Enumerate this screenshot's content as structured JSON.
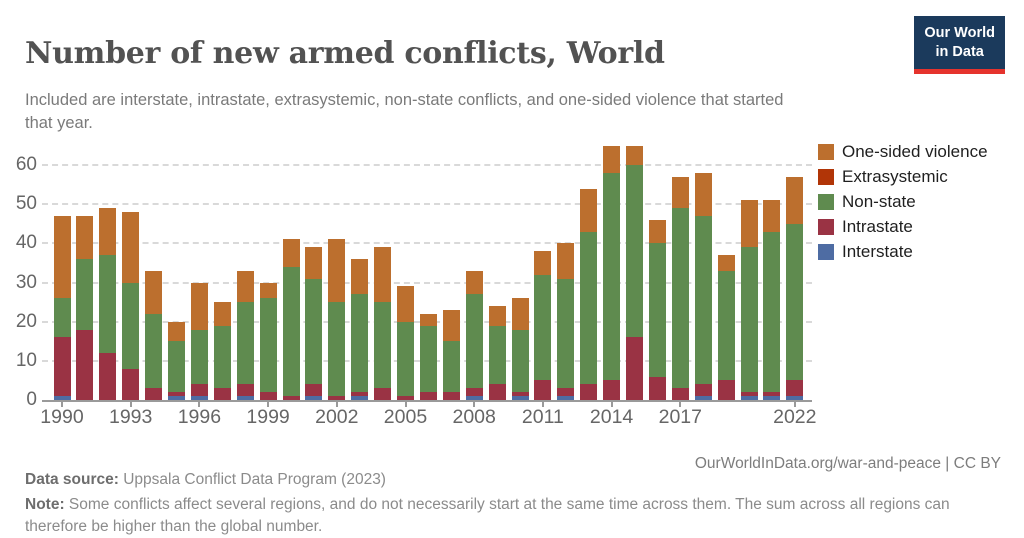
{
  "header": {
    "title": "Number of new armed conflicts, World",
    "subtitle": "Included are interstate, intrastate, extrasystemic, non-state conflicts, and one-sided violence that started that year.",
    "logo": {
      "line1": "Our World",
      "line2": "in Data"
    }
  },
  "chart_data": {
    "type": "bar",
    "stacked": true,
    "title": "Number of new armed conflicts, World",
    "xlabel": "",
    "ylabel": "",
    "ylim": [
      0,
      65
    ],
    "yticks": [
      0,
      10,
      20,
      30,
      40,
      50,
      60
    ],
    "grid": "horizontal-dashed",
    "legend_position": "right",
    "categories": [
      1990,
      1991,
      1992,
      1993,
      1994,
      1995,
      1996,
      1997,
      1998,
      1999,
      2000,
      2001,
      2002,
      2003,
      2004,
      2005,
      2006,
      2007,
      2008,
      2009,
      2010,
      2011,
      2012,
      2013,
      2014,
      2015,
      2016,
      2017,
      2018,
      2019,
      2020,
      2021,
      2022
    ],
    "x_tick_labels": [
      "1990",
      "1993",
      "1996",
      "1999",
      "2002",
      "2005",
      "2008",
      "2011",
      "2014",
      "2017",
      "2022"
    ],
    "stack_order_bottom_to_top": [
      "Interstate",
      "Intrastate",
      "Extrasystemic",
      "Non-state",
      "One-sided violence"
    ],
    "series": [
      {
        "name": "One-sided violence",
        "color": "#bc6f2e",
        "values": [
          21,
          11,
          12,
          18,
          11,
          5,
          12,
          6,
          8,
          4,
          7,
          8,
          16,
          9,
          14,
          9,
          3,
          8,
          6,
          5,
          8,
          6,
          9,
          11,
          7,
          5,
          6,
          8,
          11,
          4,
          12,
          8,
          12
        ]
      },
      {
        "name": "Extrasystemic",
        "color": "#b13507",
        "values": [
          0,
          0,
          0,
          0,
          0,
          0,
          0,
          0,
          0,
          0,
          0,
          0,
          0,
          0,
          0,
          0,
          0,
          0,
          0,
          0,
          0,
          0,
          0,
          0,
          0,
          0,
          0,
          0,
          0,
          0,
          0,
          0,
          0
        ]
      },
      {
        "name": "Non-state",
        "color": "#5f8b4f",
        "values": [
          10,
          18,
          25,
          22,
          19,
          13,
          14,
          16,
          21,
          24,
          33,
          27,
          24,
          25,
          22,
          19,
          17,
          13,
          24,
          15,
          16,
          27,
          28,
          39,
          53,
          44,
          34,
          46,
          43,
          28,
          37,
          41,
          40
        ]
      },
      {
        "name": "Intrastate",
        "color": "#9a3344",
        "values": [
          15,
          18,
          12,
          8,
          3,
          1,
          3,
          3,
          3,
          2,
          1,
          3,
          1,
          1,
          3,
          1,
          2,
          2,
          2,
          4,
          1,
          5,
          2,
          4,
          5,
          16,
          6,
          3,
          3,
          5,
          1,
          1,
          4
        ]
      },
      {
        "name": "Interstate",
        "color": "#4e6ca3",
        "values": [
          1,
          0,
          0,
          0,
          0,
          1,
          1,
          0,
          1,
          0,
          0,
          1,
          0,
          1,
          0,
          0,
          0,
          0,
          1,
          0,
          1,
          0,
          1,
          0,
          0,
          0,
          0,
          0,
          1,
          0,
          1,
          1,
          1
        ]
      }
    ]
  },
  "footer": {
    "source_label": "Data source:",
    "source_text": " Uppsala Conflict Data Program (2023)",
    "link_text": "OurWorldInData.org/war-and-peace | CC BY",
    "note_label": "Note:",
    "note_text": " Some conflicts affect several regions, and do not necessarily start at the same time across them. The sum across all regions can therefore be higher than the global number."
  }
}
